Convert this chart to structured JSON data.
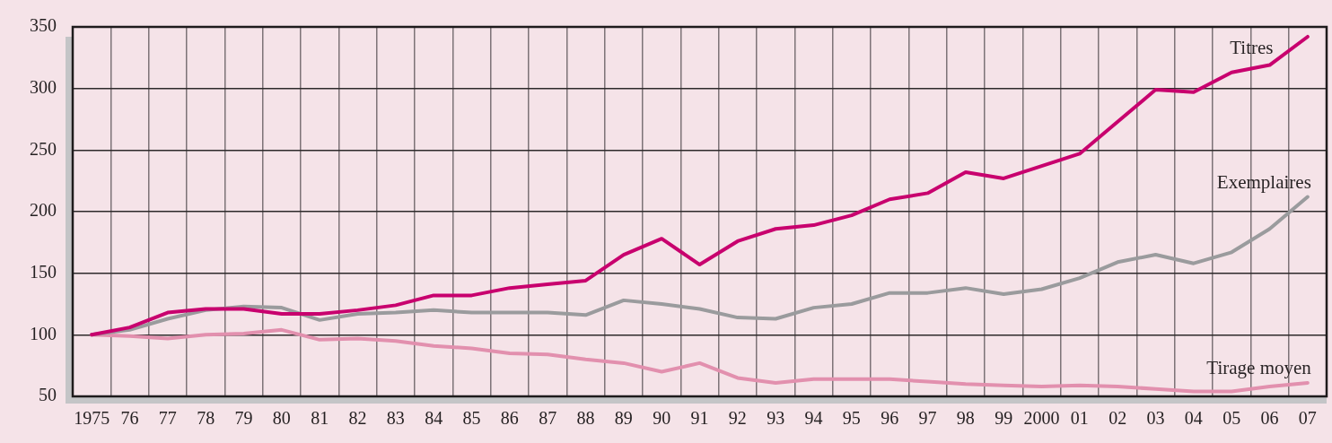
{
  "chart_data": {
    "type": "line",
    "categories": [
      "1975",
      "76",
      "77",
      "78",
      "79",
      "80",
      "81",
      "82",
      "83",
      "84",
      "85",
      "86",
      "87",
      "88",
      "89",
      "90",
      "91",
      "92",
      "93",
      "94",
      "95",
      "96",
      "97",
      "98",
      "99",
      "2000",
      "01",
      "02",
      "03",
      "04",
      "05",
      "06",
      "07"
    ],
    "series": [
      {
        "name": "Titres",
        "color": "#c8006e",
        "values": [
          100,
          106,
          118,
          121,
          121,
          117,
          117,
          120,
          124,
          132,
          132,
          138,
          141,
          144,
          165,
          178,
          157,
          176,
          186,
          189,
          197,
          210,
          215,
          232,
          227,
          237,
          247,
          273,
          299,
          297,
          313,
          319,
          342
        ]
      },
      {
        "name": "Exemplaires",
        "color": "#9a9b9d",
        "values": [
          100,
          104,
          113,
          120,
          123,
          122,
          112,
          117,
          118,
          120,
          118,
          118,
          118,
          116,
          128,
          125,
          121,
          114,
          113,
          122,
          125,
          134,
          134,
          138,
          133,
          137,
          146,
          159,
          165,
          158,
          167,
          186,
          212
        ]
      },
      {
        "name": "Tirage moyen",
        "color": "#e290ae",
        "values": [
          100,
          99,
          97,
          100,
          101,
          104,
          96,
          97,
          95,
          91,
          89,
          85,
          84,
          80,
          77,
          70,
          77,
          65,
          61,
          64,
          64,
          64,
          62,
          60,
          59,
          58,
          59,
          58,
          56,
          54,
          54,
          58,
          61
        ]
      }
    ],
    "ylim": [
      50,
      350
    ],
    "yticks": [
      50,
      100,
      150,
      200,
      250,
      300,
      350
    ],
    "grid": true,
    "legend": false,
    "marker": "none",
    "line_style": "solid"
  }
}
